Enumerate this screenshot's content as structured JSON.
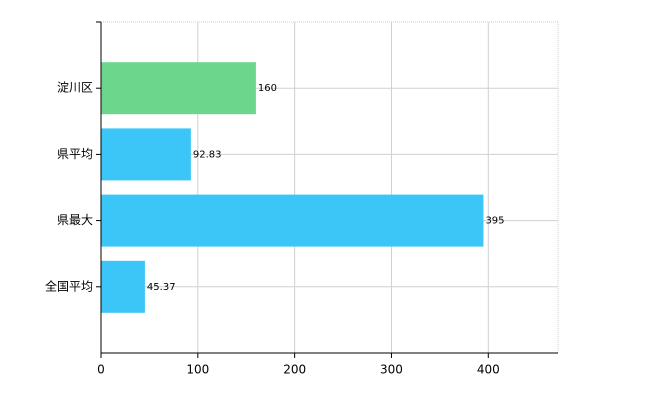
{
  "chart_data": {
    "type": "bar",
    "orientation": "horizontal",
    "categories": [
      "淀川区",
      "県平均",
      "県最大",
      "全国平均"
    ],
    "values": [
      160,
      92.83,
      395,
      45.37
    ],
    "colors": [
      "#6dd68d",
      "#3cc6f7",
      "#3cc6f7",
      "#3cc6f7"
    ],
    "xlim": [
      0,
      472
    ],
    "xticks": [
      0,
      100,
      200,
      300,
      400
    ],
    "grid": true
  }
}
